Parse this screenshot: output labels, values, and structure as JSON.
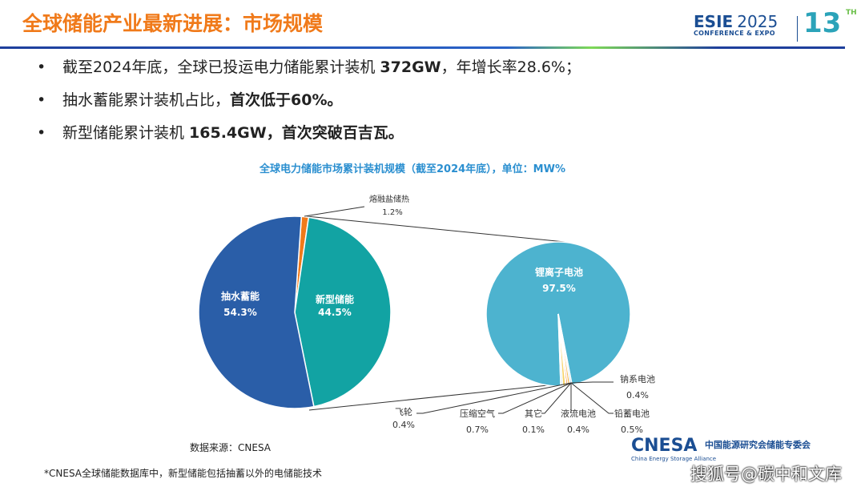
{
  "header": {
    "title": "全球储能产业最新进展：市场规模",
    "logo_brand": "ESIE",
    "logo_year": "2025",
    "logo_sub": "CONFERENCE & EXPO",
    "logo_edition": "13",
    "logo_edition_suffix": "TH"
  },
  "bullets": [
    {
      "pre": "截至2024年底，全球已投运电力储能累计装机 ",
      "bold": "372GW",
      "post": "，年增长率28.6%；"
    },
    {
      "pre": "抽水蓄能累计装机占比，",
      "bold": "首次低于60%。",
      "post": ""
    },
    {
      "pre": "新型储能累计装机 ",
      "bold": "165.4GW，首次突破百吉瓦。",
      "post": ""
    }
  ],
  "chart_data": [
    {
      "type": "pie",
      "title": "全球电力储能市场累计装机规模（截至2024年底），单位：MW%",
      "slices": [
        {
          "label": "熔融盐储热",
          "value": 1.2,
          "color": "#f07a1a"
        },
        {
          "label": "新型储能",
          "value": 44.5,
          "color": "#12a3a3"
        },
        {
          "label": "抽水蓄能",
          "value": 54.3,
          "color": "#2a5ea8"
        }
      ]
    },
    {
      "type": "pie",
      "title": "",
      "slices": [
        {
          "label": "锂离子电池",
          "value": 97.5,
          "color": "#4db3cf"
        },
        {
          "label": "钠系电池",
          "value": 0.4,
          "color": "#9ec9e6"
        },
        {
          "label": "铅蓄电池",
          "value": 0.5,
          "color": "#f5b041"
        },
        {
          "label": "液流电池",
          "value": 0.4,
          "color": "#f07a1a"
        },
        {
          "label": "其它",
          "value": 0.1,
          "color": "#cccccc"
        },
        {
          "label": "压缩空气",
          "value": 0.7,
          "color": "#f7d36b"
        },
        {
          "label": "飞轮",
          "value": 0.4,
          "color": "#bcdcef"
        }
      ]
    }
  ],
  "source": "数据来源：CNESA",
  "footnote": "*CNESA全球储能数据库中，新型储能包括抽蓄以外的电储能技术",
  "footer_logo": {
    "brand": "CNESA",
    "cn": "中国能源研究会储能专委会",
    "en": "China Energy Storage Alliance"
  },
  "watermark": "搜狐号@碳中和文库"
}
